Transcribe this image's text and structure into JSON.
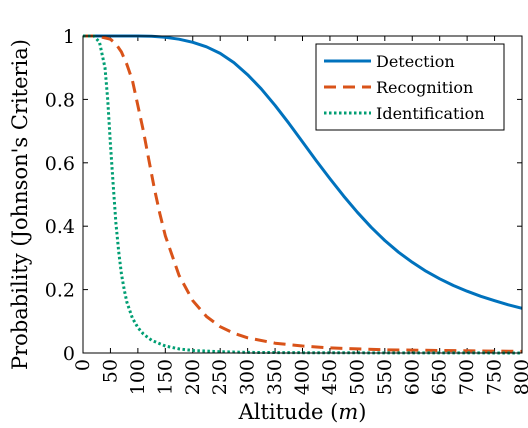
{
  "chart_data": {
    "type": "line",
    "xlabel": "Altitude (m)",
    "xlabel_parts": {
      "text": "Altitude (",
      "unit": "m",
      "close": ")"
    },
    "ylabel": "Probability (Johnson's Criteria)",
    "xlim": [
      0,
      800
    ],
    "ylim": [
      0,
      1
    ],
    "x_ticks": [
      0,
      50,
      100,
      150,
      200,
      250,
      300,
      350,
      400,
      450,
      500,
      550,
      600,
      650,
      700,
      750,
      800
    ],
    "y_ticks": [
      0,
      0.2,
      0.4,
      0.6,
      0.8,
      1
    ],
    "y_tick_labels": [
      "0",
      "0.2",
      "0.4",
      "0.6",
      "0.8",
      "1"
    ],
    "grid": false,
    "legend_position": "top-right",
    "series": [
      {
        "name": "Detection",
        "color": "#0072BD",
        "style": "solid",
        "x": [
          0,
          25,
          50,
          75,
          100,
          125,
          150,
          175,
          200,
          225,
          250,
          275,
          300,
          325,
          350,
          375,
          400,
          425,
          450,
          475,
          500,
          525,
          550,
          575,
          600,
          625,
          650,
          675,
          700,
          725,
          750,
          775,
          800
        ],
        "y": [
          1,
          1,
          1,
          1,
          1,
          0.999,
          0.996,
          0.99,
          0.98,
          0.966,
          0.945,
          0.916,
          0.878,
          0.833,
          0.781,
          0.725,
          0.666,
          0.607,
          0.55,
          0.495,
          0.444,
          0.397,
          0.355,
          0.318,
          0.286,
          0.258,
          0.234,
          0.213,
          0.195,
          0.179,
          0.165,
          0.152,
          0.141
        ]
      },
      {
        "name": "Recognition",
        "color": "#D95319",
        "style": "dashed",
        "x": [
          0,
          25,
          50,
          60,
          70,
          80,
          90,
          100,
          110,
          120,
          130,
          140,
          150,
          175,
          200,
          225,
          250,
          275,
          300,
          350,
          400,
          450,
          500,
          550,
          600,
          650,
          700,
          750,
          800
        ],
        "y": [
          1,
          1,
          0.99,
          0.975,
          0.95,
          0.91,
          0.86,
          0.78,
          0.7,
          0.61,
          0.52,
          0.44,
          0.37,
          0.245,
          0.165,
          0.115,
          0.083,
          0.062,
          0.048,
          0.031,
          0.022,
          0.016,
          0.013,
          0.01,
          0.009,
          0.008,
          0.007,
          0.006,
          0.005
        ]
      },
      {
        "name": "Identification",
        "color": "#009E73",
        "style": "dotted",
        "x": [
          0,
          20,
          30,
          40,
          45,
          50,
          55,
          60,
          65,
          70,
          75,
          80,
          90,
          100,
          110,
          125,
          150,
          175,
          200,
          250,
          300,
          400,
          500,
          600,
          700,
          800
        ],
        "y": [
          1,
          1,
          0.98,
          0.9,
          0.8,
          0.66,
          0.53,
          0.41,
          0.32,
          0.25,
          0.2,
          0.16,
          0.11,
          0.08,
          0.06,
          0.04,
          0.022,
          0.013,
          0.008,
          0.004,
          0.002,
          0.001,
          0.0005,
          0.0003,
          0.0002,
          0.0001
        ]
      }
    ]
  }
}
